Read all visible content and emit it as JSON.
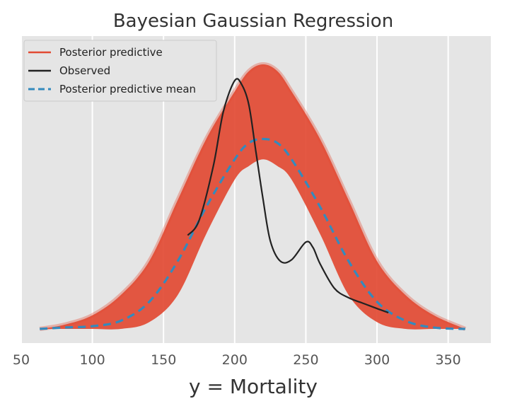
{
  "chart_data": {
    "type": "line",
    "title": "Bayesian Gaussian Regression",
    "xlabel": "y = Mortality",
    "ylabel": "",
    "xlim": [
      50,
      380
    ],
    "ylim": [
      0,
      0.0195
    ],
    "xticks": [
      50,
      100,
      150,
      200,
      250,
      300,
      350
    ],
    "xtick_labels": [
      "50",
      "100",
      "150",
      "200",
      "250",
      "300",
      "350"
    ],
    "grid": true,
    "legend": {
      "placement": "top-left"
    },
    "series": [
      {
        "name": "Posterior predictive",
        "kind": "band",
        "color": "#E24A33",
        "x": [
          63,
          80,
          100,
          120,
          140,
          160,
          180,
          200,
          210,
          220,
          230,
          240,
          260,
          280,
          300,
          320,
          340,
          362
        ],
        "lower": [
          0.0,
          0.0,
          0.0,
          0.0,
          0.0005,
          0.0025,
          0.007,
          0.011,
          0.012,
          0.0125,
          0.012,
          0.011,
          0.007,
          0.0025,
          0.0005,
          0.0,
          0.0,
          0.0
        ],
        "upper": [
          0.0,
          0.0003,
          0.001,
          0.0025,
          0.005,
          0.0095,
          0.014,
          0.0175,
          0.019,
          0.0195,
          0.019,
          0.0175,
          0.014,
          0.0095,
          0.005,
          0.0025,
          0.001,
          0.0
        ]
      },
      {
        "name": "Observed",
        "kind": "line",
        "color": "#222222",
        "x": [
          167,
          175,
          185,
          192,
          200,
          205,
          210,
          215,
          220,
          225,
          232,
          240,
          250,
          255,
          260,
          270,
          280,
          290,
          300,
          308
        ],
        "y": [
          0.0069,
          0.008,
          0.012,
          0.016,
          0.0183,
          0.018,
          0.0165,
          0.013,
          0.0095,
          0.0065,
          0.005,
          0.0051,
          0.0064,
          0.006,
          0.0048,
          0.003,
          0.0023,
          0.0019,
          0.0015,
          0.0012
        ]
      },
      {
        "name": "Posterior predictive mean",
        "kind": "line",
        "dashed": true,
        "color": "#348ABD",
        "x": [
          63,
          80,
          100,
          120,
          140,
          160,
          180,
          200,
          210,
          220,
          230,
          240,
          260,
          280,
          300,
          320,
          340,
          362
        ],
        "y": [
          0.0,
          0.0001,
          0.0002,
          0.0006,
          0.002,
          0.005,
          0.009,
          0.0125,
          0.0137,
          0.014,
          0.0137,
          0.0125,
          0.009,
          0.005,
          0.002,
          0.0006,
          0.0001,
          0.0
        ]
      }
    ]
  }
}
